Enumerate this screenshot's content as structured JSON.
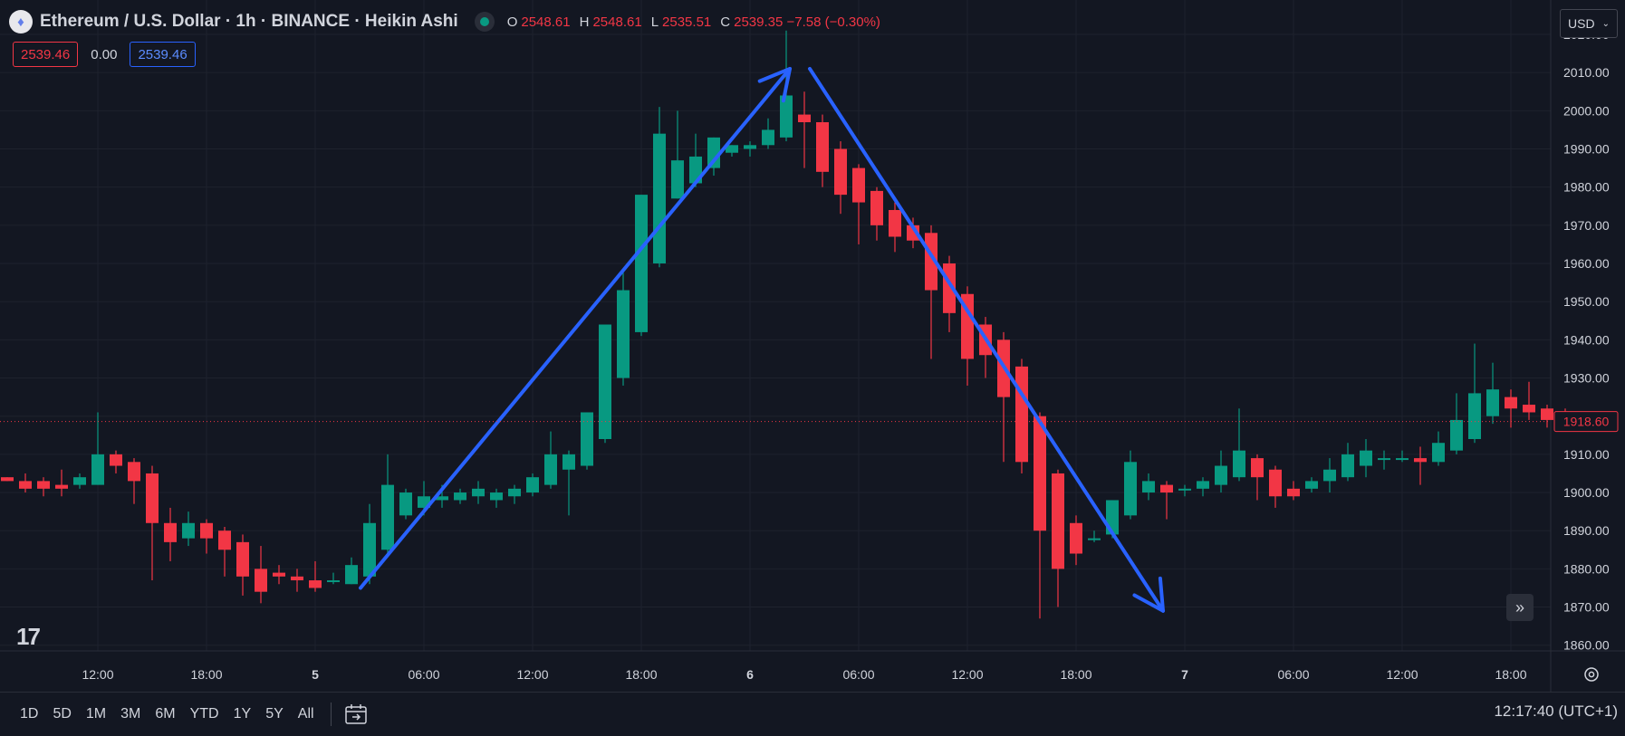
{
  "header": {
    "icon": "ethereum-icon",
    "title": "Ethereum / U.S. Dollar · 1h · BINANCE · Heikin Ashi",
    "ohlc": [
      {
        "label": "O",
        "value": "2548.61"
      },
      {
        "label": "H",
        "value": "2548.61"
      },
      {
        "label": "L",
        "value": "2535.51"
      },
      {
        "label": "C",
        "value": "2539.35 −7.58 (−0.30%)"
      }
    ]
  },
  "badges": {
    "sell": "2539.46",
    "spread": "0.00",
    "buy": "2539.46"
  },
  "currency": "USD",
  "price_label": "1918.60",
  "toolbar": {
    "timeframes": [
      "1D",
      "5D",
      "1M",
      "3M",
      "6M",
      "YTD",
      "1Y",
      "5Y",
      "All"
    ],
    "clock": "12:17:40 (UTC+1)"
  },
  "colors": {
    "up": "#089981",
    "down": "#f23645",
    "arrow": "#2962ff",
    "background": "#131722",
    "grid": "#1e222d"
  },
  "chart_data": {
    "type": "candlestick",
    "ylim": [
      1856,
      2022
    ],
    "y_ticks": [
      2020,
      2010,
      2000,
      1990,
      1980,
      1970,
      1960,
      1950,
      1940,
      1930,
      1920,
      1910,
      1900,
      1890,
      1880,
      1870,
      1860
    ],
    "x_ticks": [
      {
        "label": "12:00",
        "index": 5
      },
      {
        "label": "18:00",
        "index": 11
      },
      {
        "label": "5",
        "index": 17
      },
      {
        "label": "06:00",
        "index": 23
      },
      {
        "label": "12:00",
        "index": 29
      },
      {
        "label": "18:00",
        "index": 35
      },
      {
        "label": "6",
        "index": 41
      },
      {
        "label": "06:00",
        "index": 47
      },
      {
        "label": "12:00",
        "index": 53
      },
      {
        "label": "18:00",
        "index": 59
      },
      {
        "label": "7",
        "index": 65
      },
      {
        "label": "06:00",
        "index": 71
      },
      {
        "label": "12:00",
        "index": 77
      },
      {
        "label": "18:00",
        "index": 83
      }
    ],
    "candles": [
      [
        1904,
        1904,
        1903,
        1903
      ],
      [
        1903,
        1905,
        1900,
        1901
      ],
      [
        1903,
        1904,
        1899,
        1901
      ],
      [
        1902,
        1906,
        1899,
        1901
      ],
      [
        1902,
        1905,
        1901,
        1904
      ],
      [
        1902,
        1921,
        1902,
        1910
      ],
      [
        1910,
        1911,
        1905,
        1907
      ],
      [
        1908,
        1909,
        1897,
        1903
      ],
      [
        1905,
        1907,
        1877,
        1892
      ],
      [
        1892,
        1896,
        1882,
        1887
      ],
      [
        1888,
        1895,
        1886,
        1892
      ],
      [
        1892,
        1893,
        1884,
        1888
      ],
      [
        1890,
        1891,
        1878,
        1885
      ],
      [
        1887,
        1889,
        1873,
        1878
      ],
      [
        1880,
        1886,
        1871,
        1874
      ],
      [
        1879,
        1881,
        1876,
        1878
      ],
      [
        1878,
        1880,
        1874,
        1877
      ],
      [
        1877,
        1882,
        1874,
        1875
      ],
      [
        1877,
        1879,
        1876,
        1877
      ],
      [
        1876,
        1883,
        1876,
        1881
      ],
      [
        1878,
        1897,
        1876,
        1892
      ],
      [
        1885,
        1910,
        1883,
        1902
      ],
      [
        1894,
        1901,
        1893,
        1900
      ],
      [
        1896,
        1903,
        1894,
        1899
      ],
      [
        1898,
        1902,
        1896,
        1899
      ],
      [
        1898,
        1901,
        1897,
        1900
      ],
      [
        1899,
        1903,
        1897,
        1901
      ],
      [
        1898,
        1901,
        1896,
        1900
      ],
      [
        1899,
        1902,
        1897,
        1901
      ],
      [
        1900,
        1905,
        1899,
        1904
      ],
      [
        1902,
        1916,
        1901,
        1910
      ],
      [
        1906,
        1911,
        1894,
        1910
      ],
      [
        1907,
        1921,
        1906,
        1921
      ],
      [
        1914,
        1944,
        1913,
        1944
      ],
      [
        1930,
        1958,
        1928,
        1953
      ],
      [
        1942,
        1978,
        1941,
        1978
      ],
      [
        1960,
        2001,
        1959,
        1994
      ],
      [
        1977,
        2000,
        1977,
        1987
      ],
      [
        1981,
        1994,
        1980,
        1988
      ],
      [
        1985,
        1993,
        1983,
        1993
      ],
      [
        1989,
        1991,
        1988,
        1991
      ],
      [
        1990,
        1992,
        1988,
        1991
      ],
      [
        1991,
        1998,
        1990,
        1995
      ],
      [
        1993,
        2021,
        1992,
        2004
      ],
      [
        1999,
        2005,
        1985,
        1997
      ],
      [
        1997,
        1999,
        1980,
        1984
      ],
      [
        1990,
        1992,
        1973,
        1978
      ],
      [
        1985,
        1986,
        1965,
        1976
      ],
      [
        1979,
        1980,
        1966,
        1970
      ],
      [
        1974,
        1976,
        1963,
        1967
      ],
      [
        1970,
        1972,
        1964,
        1966
      ],
      [
        1968,
        1970,
        1935,
        1953
      ],
      [
        1960,
        1962,
        1942,
        1947
      ],
      [
        1952,
        1954,
        1928,
        1935
      ],
      [
        1944,
        1946,
        1930,
        1936
      ],
      [
        1940,
        1942,
        1908,
        1925
      ],
      [
        1933,
        1935,
        1905,
        1908
      ],
      [
        1920,
        1921,
        1867,
        1890
      ],
      [
        1905,
        1906,
        1870,
        1880
      ],
      [
        1892,
        1894,
        1881,
        1884
      ],
      [
        1888,
        1890,
        1887,
        1888
      ],
      [
        1889,
        1898,
        1888,
        1898
      ],
      [
        1894,
        1911,
        1893,
        1908
      ],
      [
        1900,
        1905,
        1898,
        1903
      ],
      [
        1902,
        1903,
        1893,
        1900
      ],
      [
        1901,
        1902,
        1899,
        1901
      ],
      [
        1901,
        1904,
        1899,
        1903
      ],
      [
        1902,
        1911,
        1900,
        1907
      ],
      [
        1904,
        1922,
        1903,
        1911
      ],
      [
        1909,
        1910,
        1898,
        1904
      ],
      [
        1906,
        1907,
        1896,
        1899
      ],
      [
        1901,
        1903,
        1898,
        1899
      ],
      [
        1901,
        1904,
        1900,
        1903
      ],
      [
        1903,
        1909,
        1900,
        1906
      ],
      [
        1904,
        1913,
        1903,
        1910
      ],
      [
        1907,
        1914,
        1904,
        1911
      ],
      [
        1909,
        1911,
        1906,
        1909
      ],
      [
        1909,
        1911,
        1908,
        1909
      ],
      [
        1909,
        1912,
        1902,
        1908
      ],
      [
        1908,
        1916,
        1907,
        1913
      ],
      [
        1911,
        1926,
        1910,
        1919
      ],
      [
        1914,
        1939,
        1913,
        1926
      ],
      [
        1920,
        1934,
        1918,
        1927
      ],
      [
        1925,
        1927,
        1917,
        1922
      ],
      [
        1923,
        1929,
        1919,
        1921
      ],
      [
        1922,
        1923,
        1917,
        1919
      ],
      [
        1919,
        1922,
        1917,
        1918
      ]
    ],
    "arrows": [
      {
        "from": [
          19.5,
          1875
        ],
        "to": [
          43.2,
          2011
        ],
        "direction": "up"
      },
      {
        "from": [
          44.3,
          2011
        ],
        "to": [
          63.8,
          1869
        ],
        "direction": "down"
      }
    ]
  }
}
